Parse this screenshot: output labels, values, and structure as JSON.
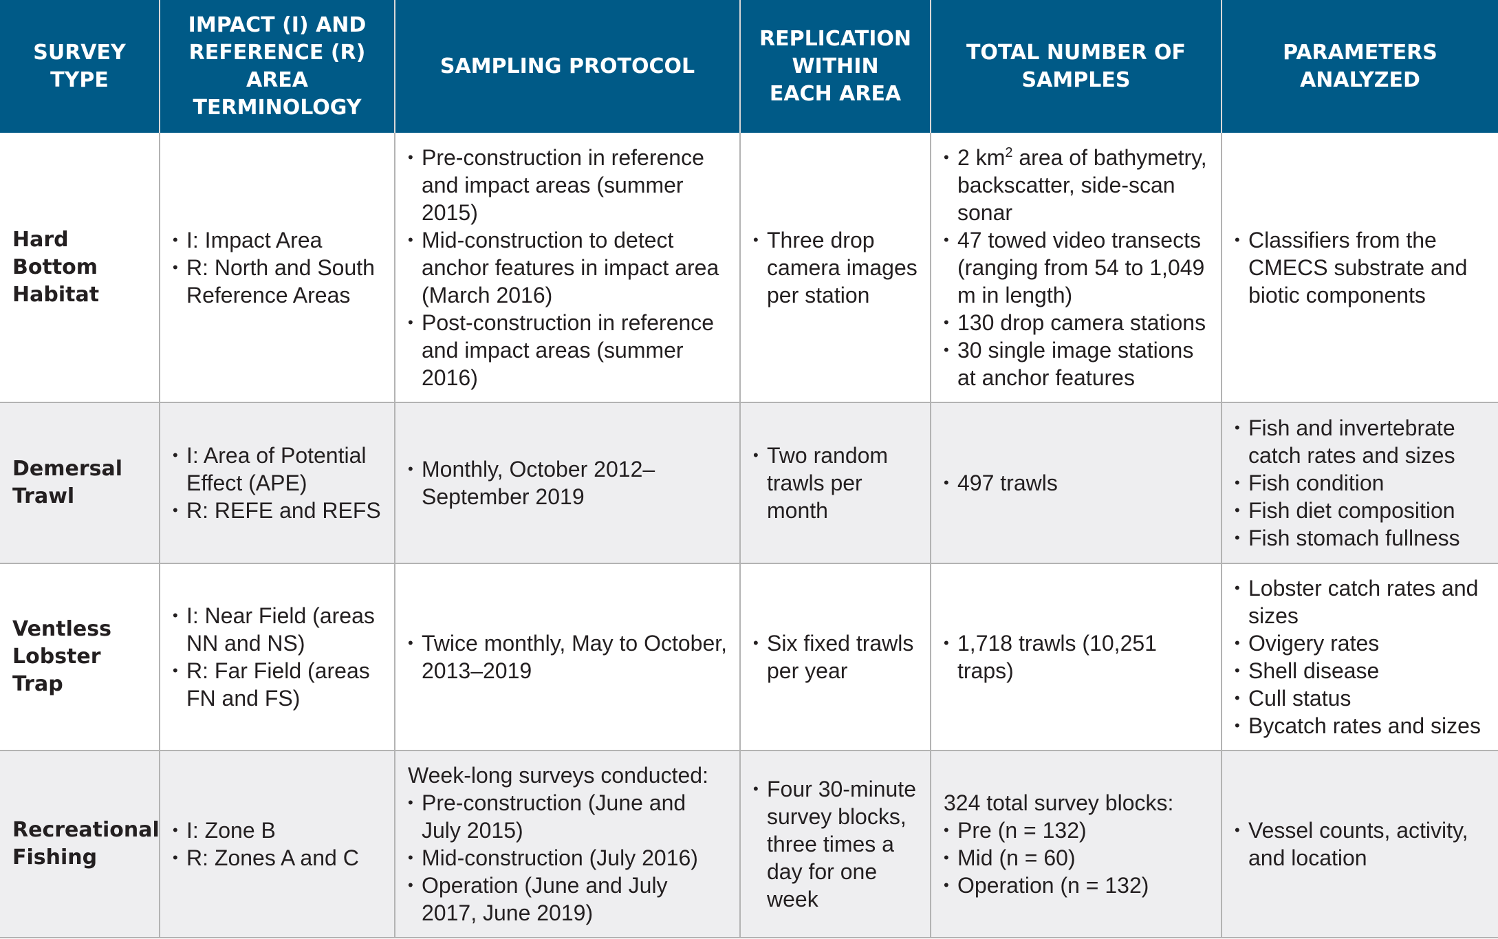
{
  "header": {
    "survey_type": "SURVEY TYPE",
    "terminology": "IMPACT (I) AND REFERENCE (R) AREA TERMINOLOGY",
    "protocol": "SAMPLING PROTOCOL",
    "replication": "REPLICATION WITHIN EACH AREA",
    "total": "TOTAL NUMBER OF SAMPLES",
    "parameters": "PARAMETERS ANALYZED"
  },
  "rows": [
    {
      "type": "Hard Bottom Habitat",
      "terminology": [
        "I: Impact Area",
        "R: North and South Reference Areas"
      ],
      "protocol_intro": "",
      "protocol": [
        "Pre-construction in reference and impact areas (summer 2015)",
        "Mid-construction to detect anchor features in impact area (March 2016)",
        "Post-construction in reference and impact areas (summer 2016)"
      ],
      "replication": [
        "Three drop camera images per station"
      ],
      "total_intro": "",
      "total_first_prefix": "2 km",
      "total_first_sup": "2",
      "total_first_suffix": " area of bathymetry, backscatter, side-scan sonar",
      "total": [
        "47 towed video transects (ranging from 54 to 1,049 m in length)",
        "130 drop camera stations",
        "30 single image stations at anchor features"
      ],
      "parameters": [
        "Classifiers from the CMECS substrate and biotic components"
      ]
    },
    {
      "type": "Demersal Trawl",
      "terminology": [
        "I: Area of Potential Effect (APE)",
        "R: REFE and REFS"
      ],
      "protocol_intro": "",
      "protocol": [
        "Monthly, October 2012–September 2019"
      ],
      "replication": [
        "Two random trawls per month"
      ],
      "total_intro": "",
      "total": [
        "497 trawls"
      ],
      "parameters": [
        "Fish and invertebrate catch rates and sizes",
        "Fish condition",
        "Fish diet composition",
        "Fish stomach fullness"
      ]
    },
    {
      "type": "Ventless Lobster Trap",
      "terminology": [
        "I: Near Field (areas NN and NS)",
        "R: Far Field (areas FN and FS)"
      ],
      "protocol_intro": "",
      "protocol": [
        "Twice monthly, May to October, 2013–2019"
      ],
      "replication": [
        "Six fixed trawls per year"
      ],
      "total_intro": "",
      "total": [
        "1,718 trawls (10,251 traps)"
      ],
      "parameters": [
        "Lobster catch rates and sizes",
        "Ovigery rates",
        "Shell disease",
        "Cull status",
        "Bycatch rates and sizes"
      ]
    },
    {
      "type": "Recreational Fishing",
      "terminology": [
        "I: Zone B",
        "R: Zones A and C"
      ],
      "protocol_intro": "Week-long surveys conducted:",
      "protocol": [
        "Pre-construction (June and July 2015)",
        "Mid-construction (July 2016)",
        "Operation (June and July 2017, June 2019)"
      ],
      "replication": [
        "Four 30-minute survey blocks, three times a day for one week"
      ],
      "total_intro": "324 total survey blocks:",
      "total": [
        "Pre (n = 132)",
        "Mid (n = 60)",
        "Operation (n = 132)"
      ],
      "parameters": [
        "Vessel counts, activity, and location"
      ]
    }
  ]
}
